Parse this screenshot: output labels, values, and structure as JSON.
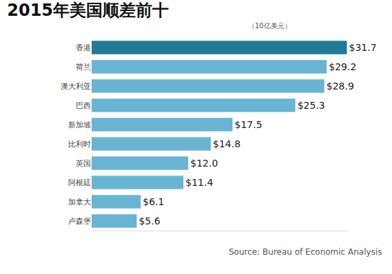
{
  "chart_data": {
    "type": "bar",
    "orientation": "horizontal",
    "title": "2015年美国顺差前十",
    "subtitle": "（10亿美元）",
    "source": "Source: Bureau of Economic Analysis",
    "categories": [
      "香港",
      "荷兰",
      "澳大利亚",
      "巴西",
      "新加坡",
      "比利时",
      "英国",
      "阿根廷",
      "加拿大",
      "卢森堡"
    ],
    "values": [
      31.7,
      29.2,
      28.9,
      25.3,
      17.5,
      14.8,
      12.0,
      11.4,
      6.1,
      5.6
    ],
    "value_labels": [
      "$31.7",
      "$29.2",
      "$28.9",
      "$25.3",
      "$17.5",
      "$14.8",
      "$12.0",
      "$11.4",
      "$6.1",
      "$5.6"
    ],
    "colors": [
      "#1f7b96",
      "#6ab4d3",
      "#6ab4d3",
      "#6ab4d3",
      "#6ab4d3",
      "#6ab4d3",
      "#6ab4d3",
      "#6ab4d3",
      "#6ab4d3",
      "#6ab4d3"
    ],
    "data_labels": true,
    "tick_labels": "y",
    "grid": false,
    "xlim": [
      0,
      32
    ]
  }
}
